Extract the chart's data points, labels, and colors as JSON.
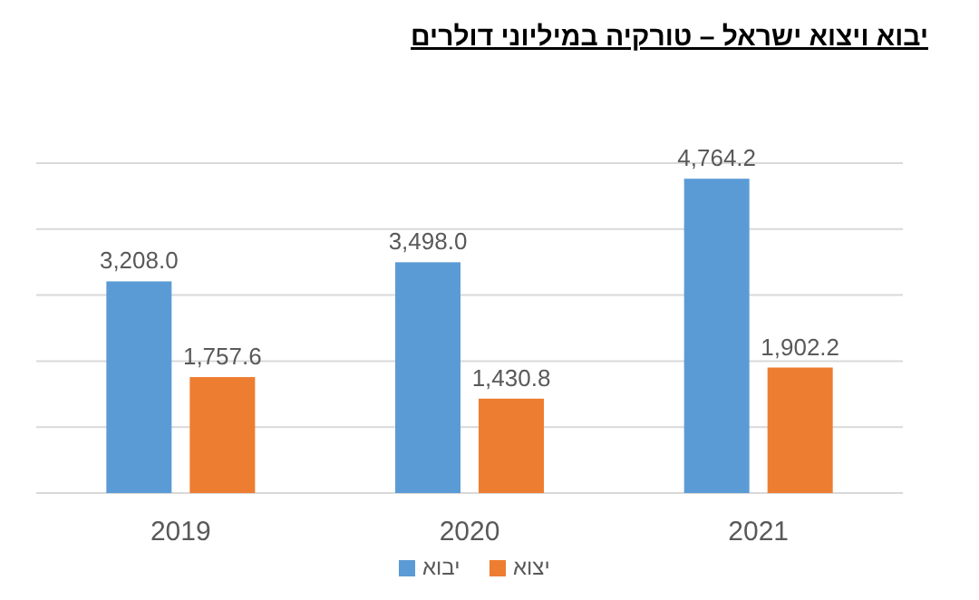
{
  "chart_data": {
    "type": "bar",
    "title": "יבוא ויצוא ישראל – טורקיה במיליוני דולרים",
    "categories": [
      "2019",
      "2020",
      "2021"
    ],
    "series": [
      {
        "name": "יבוא",
        "color": "#5b9bd5",
        "values": [
          3208.0,
          3498.0,
          4764.2
        ],
        "value_labels": [
          "3,208.0",
          "3,498.0",
          "4,764.2"
        ]
      },
      {
        "name": "יצוא",
        "color": "#ed7d31",
        "values": [
          1757.6,
          1430.8,
          1902.2
        ],
        "value_labels": [
          "1,757.6",
          "1,430.8",
          "1,902.2"
        ]
      }
    ],
    "tick_labels": "x",
    "grid": "y",
    "legend": "bottom"
  }
}
